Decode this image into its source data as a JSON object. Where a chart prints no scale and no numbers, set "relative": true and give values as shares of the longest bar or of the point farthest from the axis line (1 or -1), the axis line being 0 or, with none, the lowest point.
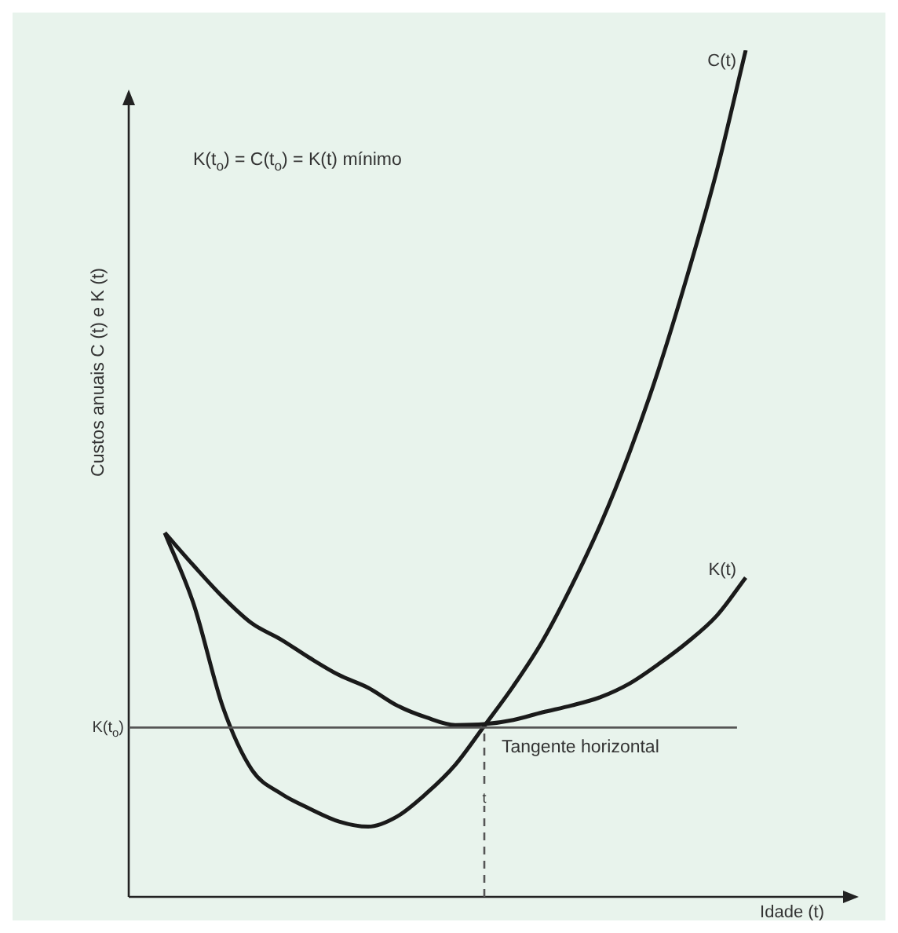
{
  "chart_data": {
    "type": "line",
    "relative": true,
    "xlabel": "Idade (t)",
    "ylabel": "Custos anuais C (t) e K (t)",
    "marker": "none",
    "line_style": "solid",
    "categories": [
      null,
      null,
      null,
      null,
      null,
      null,
      null,
      null,
      null,
      null,
      null,
      null,
      null,
      null,
      null,
      null,
      null,
      null,
      null,
      null,
      null
    ],
    "series": [
      {
        "name": "C(t)",
        "color": "#1a1a1a",
        "values": [
          0.43,
          0.345,
          0.224,
          0.15,
          0.122,
          0.104,
          0.089,
          0.083,
          0.095,
          0.122,
          0.156,
          0.202,
          0.249,
          0.302,
          0.367,
          0.44,
          0.525,
          0.623,
          0.735,
          0.857,
          1
        ]
      },
      {
        "name": "K(t)",
        "color": "#1a1a1a",
        "values": [
          0.43,
          0.391,
          0.354,
          0.323,
          0.304,
          0.282,
          0.262,
          0.247,
          0.226,
          0.212,
          0.203,
          0.204,
          0.209,
          0.218,
          0.226,
          0.236,
          0.252,
          0.275,
          0.301,
          0.332,
          0.377
        ]
      }
    ],
    "ref_lines": [
      {
        "axis": "y",
        "value": 0.2,
        "label": "K(t$_{o}$)",
        "line_style": "solid",
        "color": "#555555"
      }
    ],
    "annotations": [
      "K(t$_{o}$) = C(t$_{o}$) = K(t) mínimo",
      "Tangente horizontal",
      "t"
    ]
  }
}
